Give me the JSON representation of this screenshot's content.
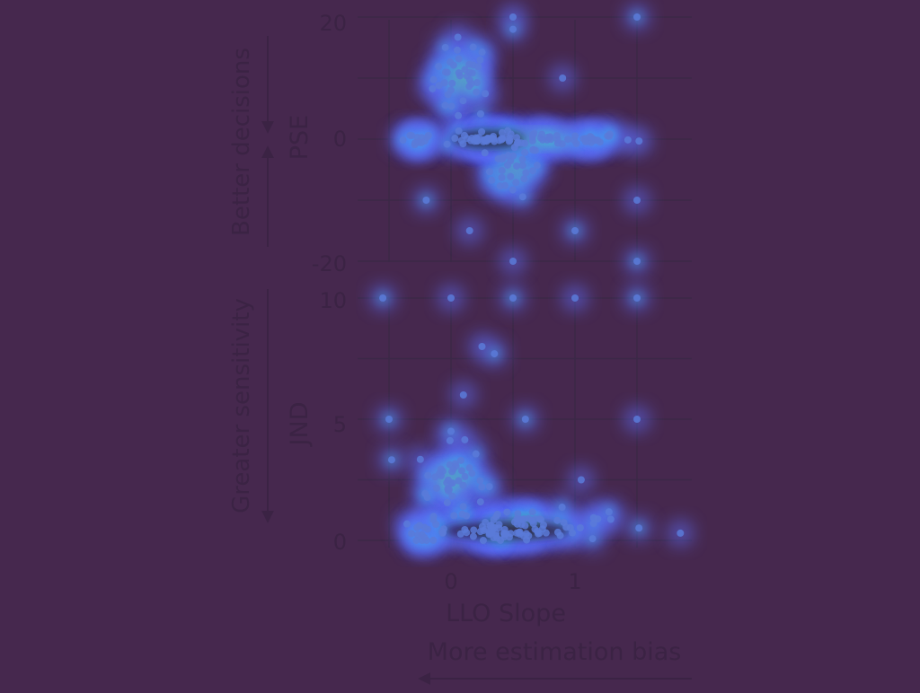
{
  "chart_data": {
    "type": "scatter",
    "x_axis": {
      "label": "LLO Slope",
      "ticks": [
        "0",
        "1"
      ],
      "range": [
        -0.55,
        1.9
      ]
    },
    "x_direction_label": "More estimation bias",
    "panels": [
      {
        "name": "pse",
        "ylabel": "PSE",
        "direction_label": "Better decisions",
        "y_ticks": [
          "20",
          "0",
          "-20"
        ],
        "ylim": [
          -20,
          20
        ],
        "clusters": [
          {
            "x": 0.1,
            "y": 10,
            "spread_x": 0.22,
            "spread_y": 6,
            "n": 40
          },
          {
            "x": 0.5,
            "y": -5,
            "spread_x": 0.2,
            "spread_y": 4,
            "n": 30
          },
          {
            "x": 0.7,
            "y": 0,
            "spread_x": 0.7,
            "spread_y": 1,
            "n": 60
          },
          {
            "x": -0.3,
            "y": 0,
            "spread_x": 0.15,
            "spread_y": 1,
            "n": 12
          },
          {
            "x": 0.3,
            "y": 0,
            "spread_x": 0.18,
            "spread_y": 0.5,
            "n": 25
          }
        ],
        "points": [
          {
            "x": 0.5,
            "y": 20
          },
          {
            "x": 1.5,
            "y": 20
          },
          {
            "x": 0.15,
            "y": -15
          },
          {
            "x": 1.0,
            "y": -15
          },
          {
            "x": 0.5,
            "y": -20
          },
          {
            "x": 1.5,
            "y": -20
          },
          {
            "x": 1.5,
            "y": -10
          },
          {
            "x": -0.2,
            "y": -10
          },
          {
            "x": 0.9,
            "y": 10
          },
          {
            "x": 0.5,
            "y": 18
          }
        ]
      },
      {
        "name": "jnd",
        "ylabel": "JND",
        "direction_label": "Greater sensitivity",
        "y_ticks": [
          "10",
          "5",
          "0"
        ],
        "ylim": [
          0,
          10
        ],
        "clusters": [
          {
            "x": 0.0,
            "y": 2.5,
            "spread_x": 0.25,
            "spread_y": 1.3,
            "n": 45
          },
          {
            "x": 0.6,
            "y": 0.6,
            "spread_x": 0.6,
            "spread_y": 0.6,
            "n": 70
          },
          {
            "x": -0.2,
            "y": 0.3,
            "spread_x": 0.15,
            "spread_y": 0.3,
            "n": 15
          },
          {
            "x": 0.3,
            "y": 0.3,
            "spread_x": 0.25,
            "spread_y": 0.2,
            "n": 20
          }
        ],
        "points": [
          {
            "x": -0.55,
            "y": 10
          },
          {
            "x": 0.0,
            "y": 10
          },
          {
            "x": 0.5,
            "y": 10
          },
          {
            "x": 1.0,
            "y": 10
          },
          {
            "x": 1.5,
            "y": 10
          },
          {
            "x": 0.25,
            "y": 8
          },
          {
            "x": 0.35,
            "y": 7.7
          },
          {
            "x": 0.1,
            "y": 6
          },
          {
            "x": 0.6,
            "y": 5
          },
          {
            "x": 1.5,
            "y": 5
          },
          {
            "x": -0.5,
            "y": 5
          },
          {
            "x": 1.05,
            "y": 2.5
          },
          {
            "x": 0.0,
            "y": 4.5
          },
          {
            "x": 1.85,
            "y": 0.3
          }
        ]
      }
    ],
    "grid": true
  },
  "colors": {
    "background": "#46284e",
    "density_low": "#5c6cf4",
    "density_mid": "#3fa7e6",
    "density_high": "#5fe07a",
    "point": "#5b7ad8",
    "text": "#3b2344"
  }
}
